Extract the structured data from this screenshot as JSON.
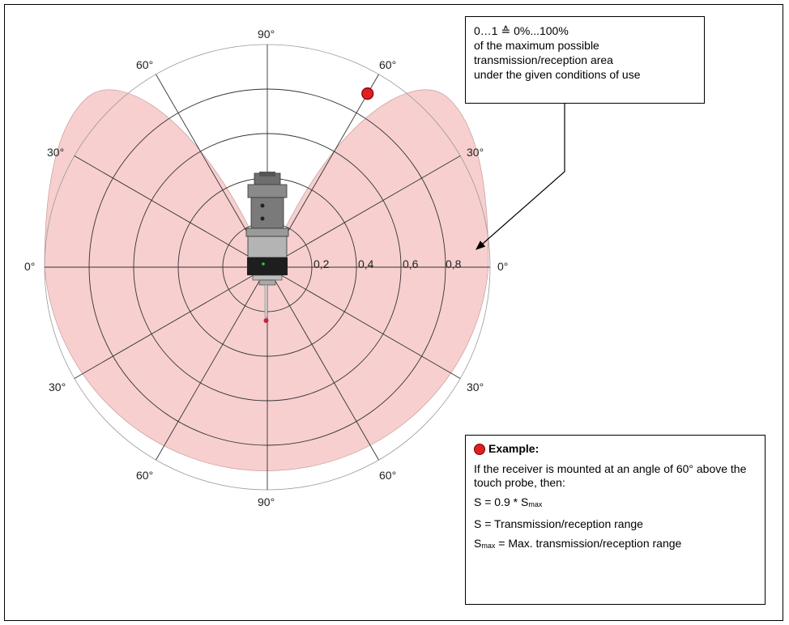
{
  "radius_labels": [
    "0,2",
    "0,4",
    "0,6",
    "0,8"
  ],
  "angle_labels": {
    "top": "90°",
    "upper_left": "60°",
    "upper_right": "60°",
    "mid_upper_left": "30°",
    "mid_upper_right": "30°",
    "left": "0°",
    "right": "0°",
    "mid_lower_left": "30°",
    "mid_lower_right": "30°",
    "lower_left": "60°",
    "lower_right": "60°",
    "bottom": "90°"
  },
  "scale_box": {
    "line1": "0…1 ≙ 0%...100%",
    "line2": "of the maximum possible",
    "line3": "transmission/reception area",
    "line4": "under the given conditions of use"
  },
  "example_box": {
    "heading": "Example:",
    "text1": "If the receiver is mounted at an angle of 60° above the touch probe, then:",
    "formula1_prefix": "S = 0.9 * S",
    "formula1_sub": "max",
    "formula2": "S = Transmission/reception range",
    "formula3_s": "S",
    "formula3_sub": "max",
    "formula3_rest": " = Max. transmission/reception range"
  },
  "colors": {
    "lobe_fill": "#f7cfcf",
    "grid": "#333333",
    "example_marker": "#e02020"
  },
  "example_point": {
    "angle_deg": 60,
    "radius_fraction": 0.9
  }
}
